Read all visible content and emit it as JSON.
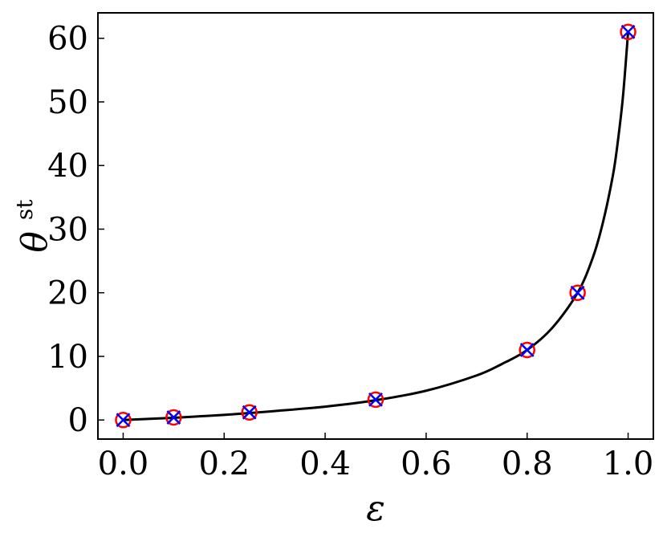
{
  "chart_data": {
    "type": "line",
    "xlabel": "ε",
    "ylabel": {
      "main": "θ",
      "sup": "st"
    },
    "xlim": [
      -0.05,
      1.05
    ],
    "ylim": [
      -3,
      64
    ],
    "x_ticks": [
      0.0,
      0.2,
      0.4,
      0.6,
      0.8,
      1.0
    ],
    "x_tick_labels": [
      "0.0",
      "0.2",
      "0.4",
      "0.6",
      "0.8",
      "1.0"
    ],
    "y_ticks": [
      0,
      10,
      20,
      30,
      40,
      50,
      60
    ],
    "y_tick_labels": [
      "0",
      "10",
      "20",
      "30",
      "40",
      "50",
      "60"
    ],
    "grid": false,
    "legend": "none",
    "series": [
      {
        "kind": "line",
        "color": "#000000",
        "points": [
          [
            0.0,
            0.0
          ],
          [
            0.1,
            0.35
          ],
          [
            0.2,
            0.8
          ],
          [
            0.25,
            1.1
          ],
          [
            0.3,
            1.4
          ],
          [
            0.4,
            2.1
          ],
          [
            0.5,
            3.1
          ],
          [
            0.6,
            4.6
          ],
          [
            0.7,
            7.0
          ],
          [
            0.75,
            8.8
          ],
          [
            0.8,
            11.0
          ],
          [
            0.85,
            14.5
          ],
          [
            0.9,
            20.0
          ],
          [
            0.93,
            25.5
          ],
          [
            0.95,
            31.0
          ],
          [
            0.97,
            38.5
          ],
          [
            0.98,
            44.0
          ],
          [
            0.99,
            51.0
          ],
          [
            1.0,
            61.0
          ]
        ]
      },
      {
        "kind": "scatter",
        "marker": "circle",
        "color": "#ff0000",
        "points": [
          [
            0.0,
            0.0
          ],
          [
            0.1,
            0.4
          ],
          [
            0.25,
            1.2
          ],
          [
            0.5,
            3.2
          ],
          [
            0.8,
            11.0
          ],
          [
            0.9,
            20.0
          ],
          [
            1.0,
            61.0
          ]
        ]
      },
      {
        "kind": "scatter",
        "marker": "x",
        "color": "#0000ff",
        "points": [
          [
            0.0,
            0.0
          ],
          [
            0.1,
            0.4
          ],
          [
            0.25,
            1.2
          ],
          [
            0.5,
            3.2
          ],
          [
            0.8,
            11.0
          ],
          [
            0.9,
            20.0
          ],
          [
            1.0,
            61.0
          ]
        ]
      }
    ]
  }
}
